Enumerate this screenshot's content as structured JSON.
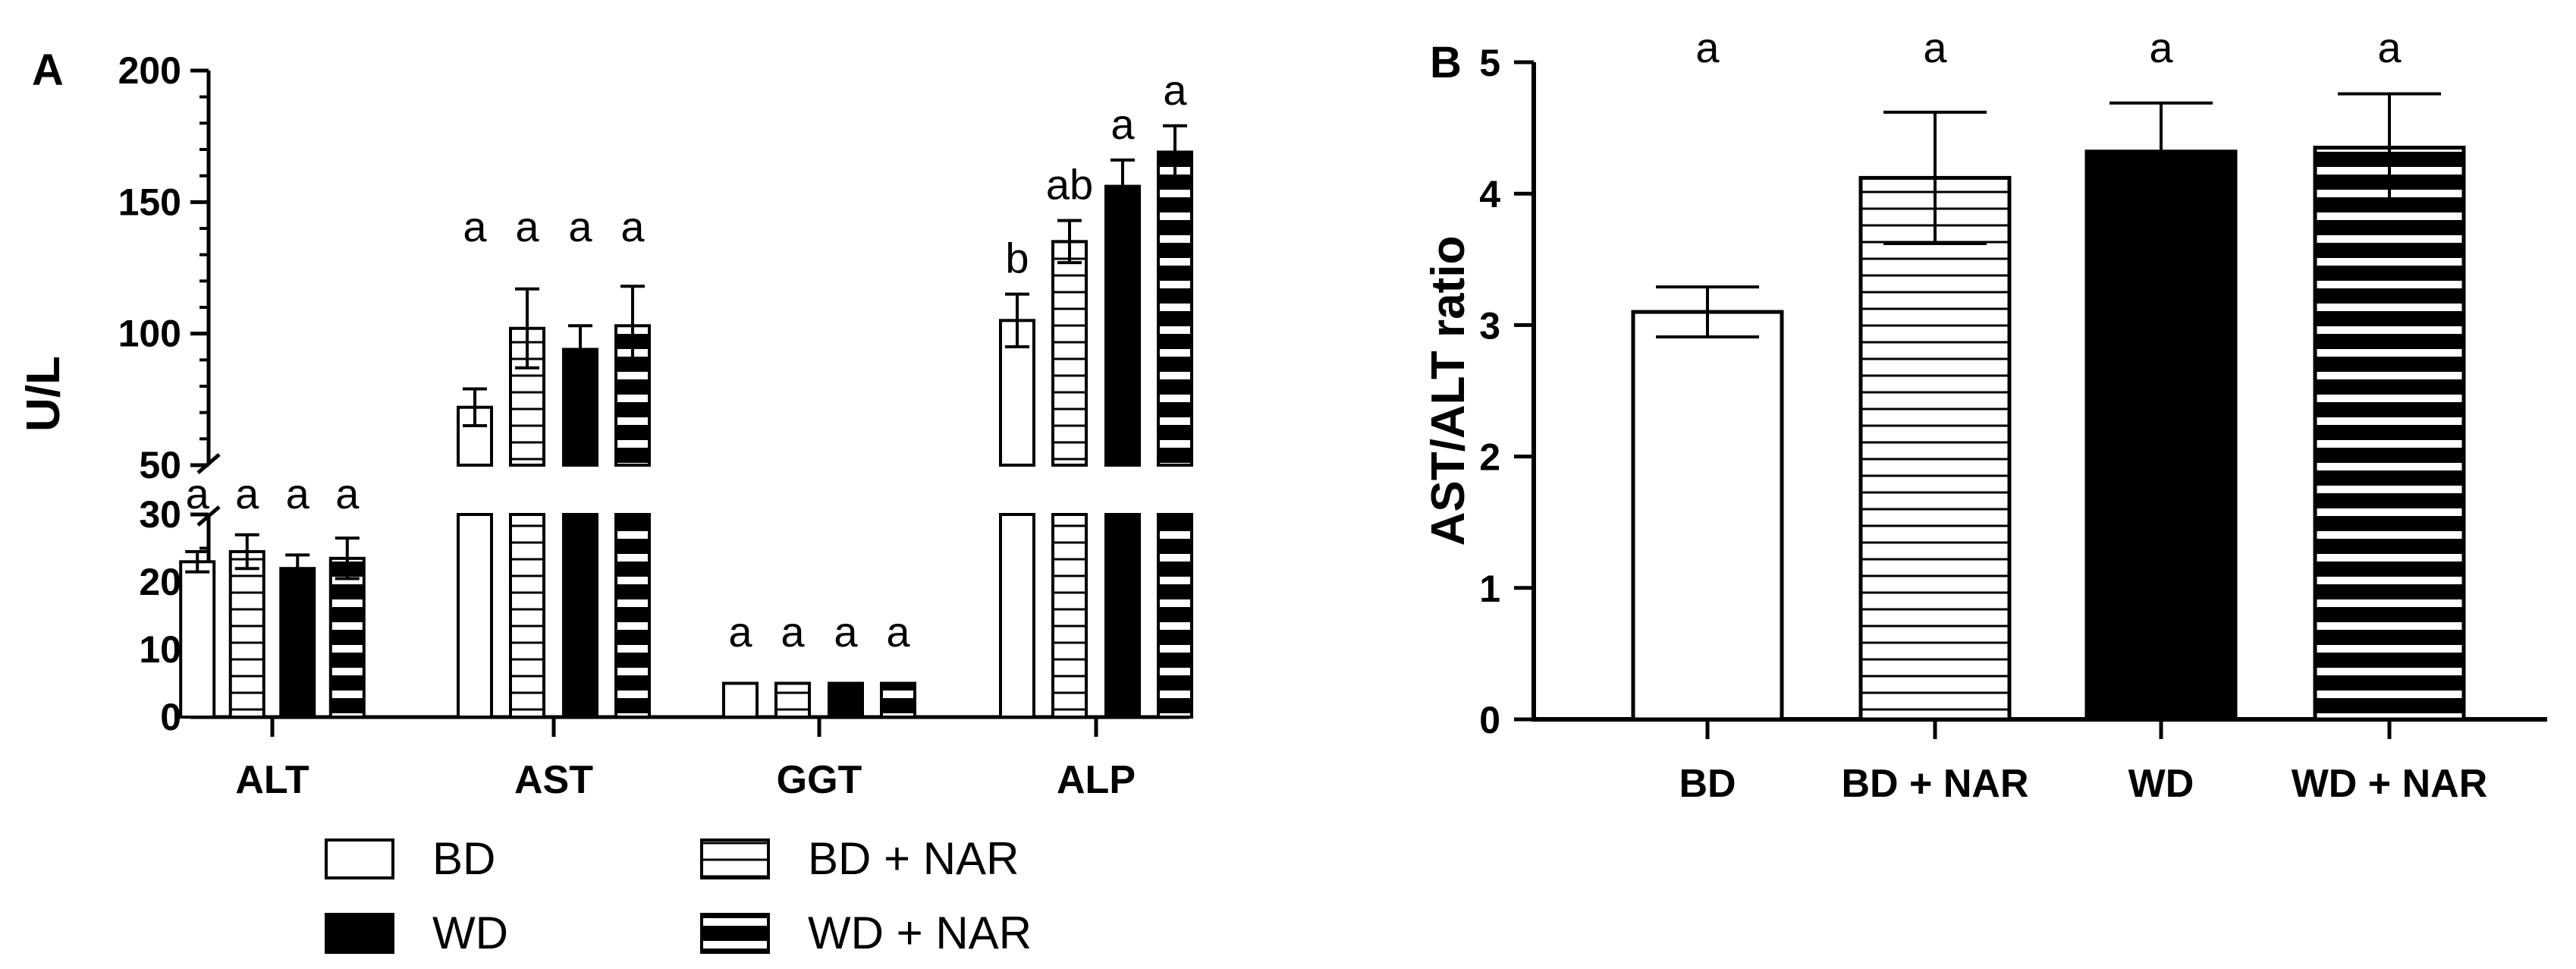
{
  "chart_data": [
    {
      "panel": "A",
      "type": "bar",
      "ylabel": "U/L",
      "y_axis_break": {
        "lower_range": [
          0,
          30
        ],
        "upper_range": [
          50,
          200
        ]
      },
      "lower_ticks": [
        0,
        10,
        20,
        30
      ],
      "upper_ticks": [
        50,
        100,
        150,
        200
      ],
      "categories": [
        "ALT",
        "AST",
        "GGT",
        "ALP"
      ],
      "series": [
        {
          "name": "BD",
          "fill": "open",
          "values": [
            23,
            72,
            5,
            105
          ],
          "errors": [
            1.5,
            7,
            0,
            10
          ],
          "letters": [
            "a",
            "a",
            "a",
            "b"
          ]
        },
        {
          "name": "BD + NAR",
          "fill": "horizontal-lines",
          "values": [
            24.5,
            102,
            5,
            135
          ],
          "errors": [
            2.5,
            15,
            0,
            8
          ],
          "letters": [
            "a",
            "a",
            "a",
            "ab"
          ]
        },
        {
          "name": "WD",
          "fill": "solid",
          "values": [
            22,
            94,
            5,
            156
          ],
          "errors": [
            2,
            9,
            0,
            10
          ],
          "letters": [
            "a",
            "a",
            "a",
            "a"
          ]
        },
        {
          "name": "WD + NAR",
          "fill": "thick-stripes",
          "values": [
            23.5,
            103,
            5,
            169
          ],
          "errors": [
            3,
            15,
            0,
            10
          ],
          "letters": [
            "a",
            "a",
            "a",
            "a"
          ]
        }
      ],
      "legend": [
        "BD",
        "BD + NAR",
        "WD",
        "WD + NAR"
      ],
      "legend_position": "bottom"
    },
    {
      "panel": "B",
      "type": "bar",
      "ylabel": "AST/ALT ratio",
      "ylim": [
        0,
        5
      ],
      "ticks": [
        0,
        1,
        2,
        3,
        4,
        5
      ],
      "categories": [
        "BD",
        "BD + NAR",
        "WD",
        "WD + NAR"
      ],
      "fills": [
        "open",
        "horizontal-lines",
        "solid",
        "thick-stripes"
      ],
      "values": [
        3.1,
        4.12,
        4.32,
        4.35
      ],
      "errors": [
        0.19,
        0.5,
        0.37,
        0.41
      ],
      "letters": [
        "a",
        "a",
        "a",
        "a"
      ]
    }
  ]
}
